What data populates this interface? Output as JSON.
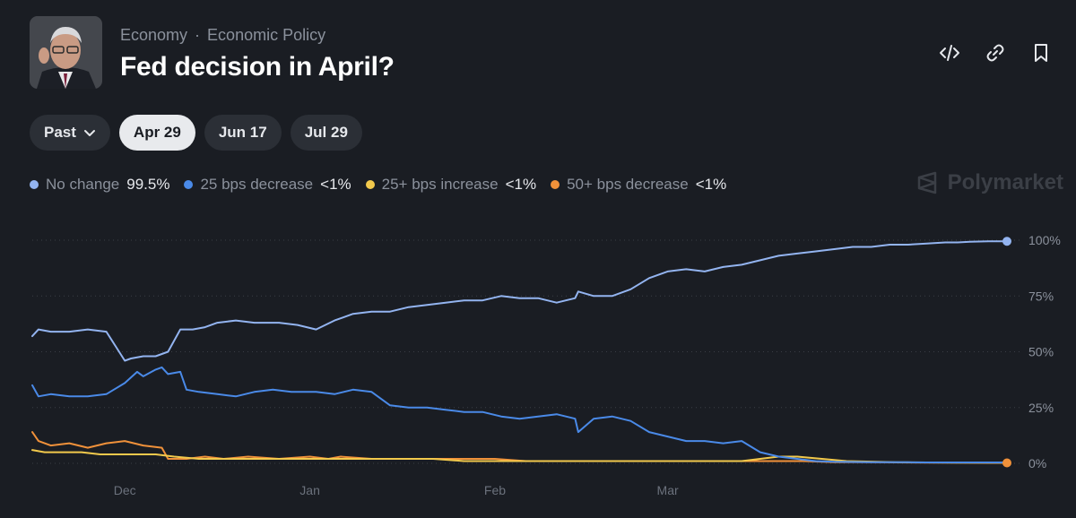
{
  "header": {
    "breadcrumb": [
      "Economy",
      "Economic Policy"
    ],
    "breadcrumb_sep": "·",
    "title": "Fed decision in April?"
  },
  "actions": [
    "embed-icon",
    "link-icon",
    "bookmark-icon"
  ],
  "filters": {
    "past_label": "Past",
    "tabs": [
      "Apr 29",
      "Jun 17",
      "Jul 29"
    ],
    "active_tab": "Apr 29"
  },
  "brand": "Polymarket",
  "colors": {
    "bg": "#1a1d23",
    "no_change": "#93b4f0",
    "decrease25": "#4a8ae8",
    "increase25": "#f2c94c",
    "decrease50": "#f0913a"
  },
  "legend": [
    {
      "name": "No change",
      "value": "99.5%",
      "color": "#93b4f0"
    },
    {
      "name": "25 bps decrease",
      "value": "<1%",
      "color": "#4a8ae8"
    },
    {
      "name": "25+ bps increase",
      "value": "<1%",
      "color": "#f2c94c"
    },
    {
      "name": "50+ bps decrease",
      "value": "<1%",
      "color": "#f0913a"
    }
  ],
  "chart_data": {
    "type": "line",
    "title": "Fed decision in April?",
    "x_ticks": [
      "Dec",
      "Jan",
      "Feb",
      "Mar"
    ],
    "x_tick_positions": [
      15,
      45,
      75,
      103
    ],
    "x_range": [
      0,
      158
    ],
    "y_ticks": [
      "0%",
      "25%",
      "50%",
      "75%",
      "100%"
    ],
    "y_tick_values": [
      0,
      25,
      50,
      75,
      100
    ],
    "ylim": [
      0,
      100
    ],
    "grid": true,
    "series": [
      {
        "name": "No change",
        "color": "#93b4f0",
        "end_marker": true,
        "x": [
          0,
          1,
          3,
          6,
          9,
          12,
          15,
          16,
          18,
          20,
          22,
          24,
          26,
          28,
          30,
          33,
          36,
          40,
          43,
          46,
          49,
          52,
          55,
          58,
          61,
          64,
          67,
          70,
          73,
          76,
          79,
          82,
          85,
          88,
          88.5,
          91,
          94,
          97,
          100,
          103,
          106,
          109,
          112,
          115,
          118,
          121,
          124,
          127,
          130,
          133,
          136,
          139,
          142,
          145,
          148,
          150,
          152,
          155,
          158
        ],
        "y": [
          57,
          60,
          59,
          59,
          60,
          59,
          46,
          47,
          48,
          48,
          50,
          60,
          60,
          61,
          63,
          64,
          63,
          63,
          62,
          60,
          64,
          67,
          68,
          68,
          70,
          71,
          72,
          73,
          73,
          75,
          74,
          74,
          72,
          74,
          77,
          75,
          75,
          78,
          83,
          86,
          87,
          86,
          88,
          89,
          91,
          93,
          94,
          95,
          96,
          97,
          97,
          98,
          98,
          98.5,
          99,
          99,
          99.3,
          99.5,
          99.5
        ]
      },
      {
        "name": "25 bps decrease",
        "color": "#4a8ae8",
        "end_marker": false,
        "x": [
          0,
          1,
          3,
          6,
          9,
          12,
          15,
          17,
          18,
          20,
          21,
          22,
          24,
          25,
          27,
          30,
          33,
          36,
          39,
          42,
          46,
          49,
          52,
          55,
          58,
          61,
          64,
          67,
          70,
          73,
          76,
          79,
          82,
          85,
          88,
          88.5,
          91,
          94,
          97,
          100,
          103,
          106,
          109,
          112,
          115,
          118,
          121,
          124,
          127,
          130,
          133,
          136,
          139,
          142,
          145,
          148,
          150,
          155,
          158
        ],
        "y": [
          35,
          30,
          31,
          30,
          30,
          31,
          36,
          41,
          39,
          42,
          43,
          40,
          41,
          33,
          32,
          31,
          30,
          32,
          33,
          32,
          32,
          31,
          33,
          32,
          26,
          25,
          25,
          24,
          23,
          23,
          21,
          20,
          21,
          22,
          20,
          14,
          20,
          21,
          19,
          14,
          12,
          10,
          10,
          9,
          10,
          5,
          3,
          2,
          1,
          0.7,
          0.6,
          0.5,
          0.5,
          0.5,
          0.4,
          0.4,
          0.4,
          0.4,
          0.4
        ]
      },
      {
        "name": "25+ bps increase",
        "color": "#f2c94c",
        "end_marker": false,
        "x": [
          0,
          2,
          5,
          8,
          11,
          14,
          17,
          20,
          23,
          27,
          30,
          35,
          40,
          45,
          50,
          55,
          60,
          65,
          70,
          75,
          80,
          85,
          90,
          95,
          100,
          105,
          110,
          115,
          118,
          121,
          124,
          128,
          132,
          140,
          150,
          158
        ],
        "y": [
          6,
          5,
          5,
          5,
          4,
          4,
          4,
          4,
          3,
          2,
          2,
          2,
          2,
          2,
          2,
          2,
          2,
          2,
          1,
          1,
          1,
          1,
          1,
          1,
          1,
          1,
          1,
          1,
          2,
          3,
          3,
          2,
          1,
          0.5,
          0.3,
          0.3
        ]
      },
      {
        "name": "50+ bps decrease",
        "color": "#f0913a",
        "end_marker": true,
        "x": [
          0,
          1,
          3,
          6,
          9,
          12,
          15,
          18,
          21,
          22,
          25,
          28,
          31,
          35,
          40,
          45,
          48,
          50,
          55,
          60,
          65,
          70,
          72,
          75,
          80,
          85,
          90,
          95,
          100,
          105,
          110,
          115,
          120,
          125,
          130,
          135,
          140,
          145,
          150,
          155,
          158
        ],
        "y": [
          14,
          10,
          8,
          9,
          7,
          9,
          10,
          8,
          7,
          2,
          2,
          3,
          2,
          3,
          2,
          3,
          2,
          3,
          2,
          2,
          2,
          2,
          2,
          2,
          1,
          1,
          1,
          1,
          1,
          1,
          1,
          1,
          1,
          1,
          0.5,
          0.5,
          0.4,
          0.3,
          0.3,
          0.2,
          0.2
        ]
      }
    ]
  }
}
